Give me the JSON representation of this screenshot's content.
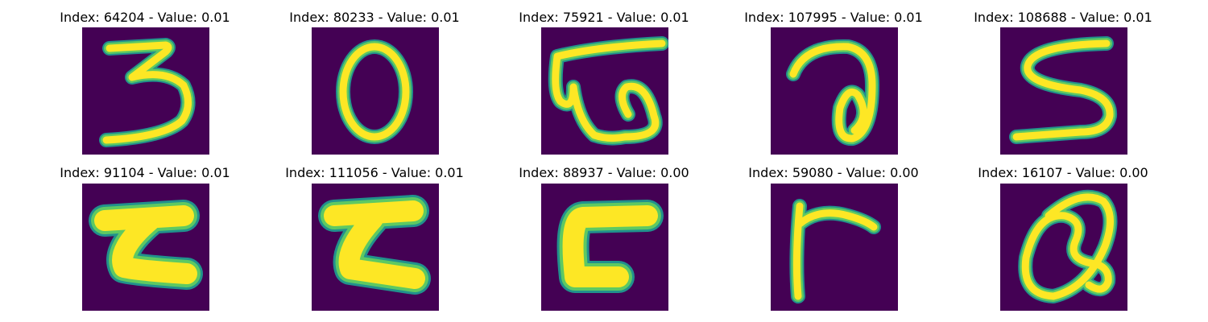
{
  "colors": {
    "background": "#440154",
    "stroke_core": "#fde725",
    "stroke_mid": "#5ec962",
    "stroke_edge": "#21918c"
  },
  "panels": [
    {
      "title": "Index: 64204 - Value: 0.01",
      "glyph": "digit-three"
    },
    {
      "title": "Index: 80233 - Value: 0.01",
      "glyph": "oval-zero"
    },
    {
      "title": "Index: 75921 - Value: 0.01",
      "glyph": "w-shape-with-top-bar"
    },
    {
      "title": "Index: 107995 - Value: 0.01",
      "glyph": "hook-with-loop"
    },
    {
      "title": "Index: 108688 - Value: 0.01",
      "glyph": "s-shape"
    },
    {
      "title": "Index: 91104 - Value: 0.01",
      "glyph": "z-like-bracket"
    },
    {
      "title": "Index: 111056 - Value: 0.01",
      "glyph": "z-like-bracket"
    },
    {
      "title": "Index: 88937 - Value: 0.00",
      "glyph": "open-bracket"
    },
    {
      "title": "Index: 59080 - Value: 0.00",
      "glyph": "angle-stroke"
    },
    {
      "title": "Index: 16107 - Value: 0.00",
      "glyph": "loop-at-sign"
    }
  ]
}
